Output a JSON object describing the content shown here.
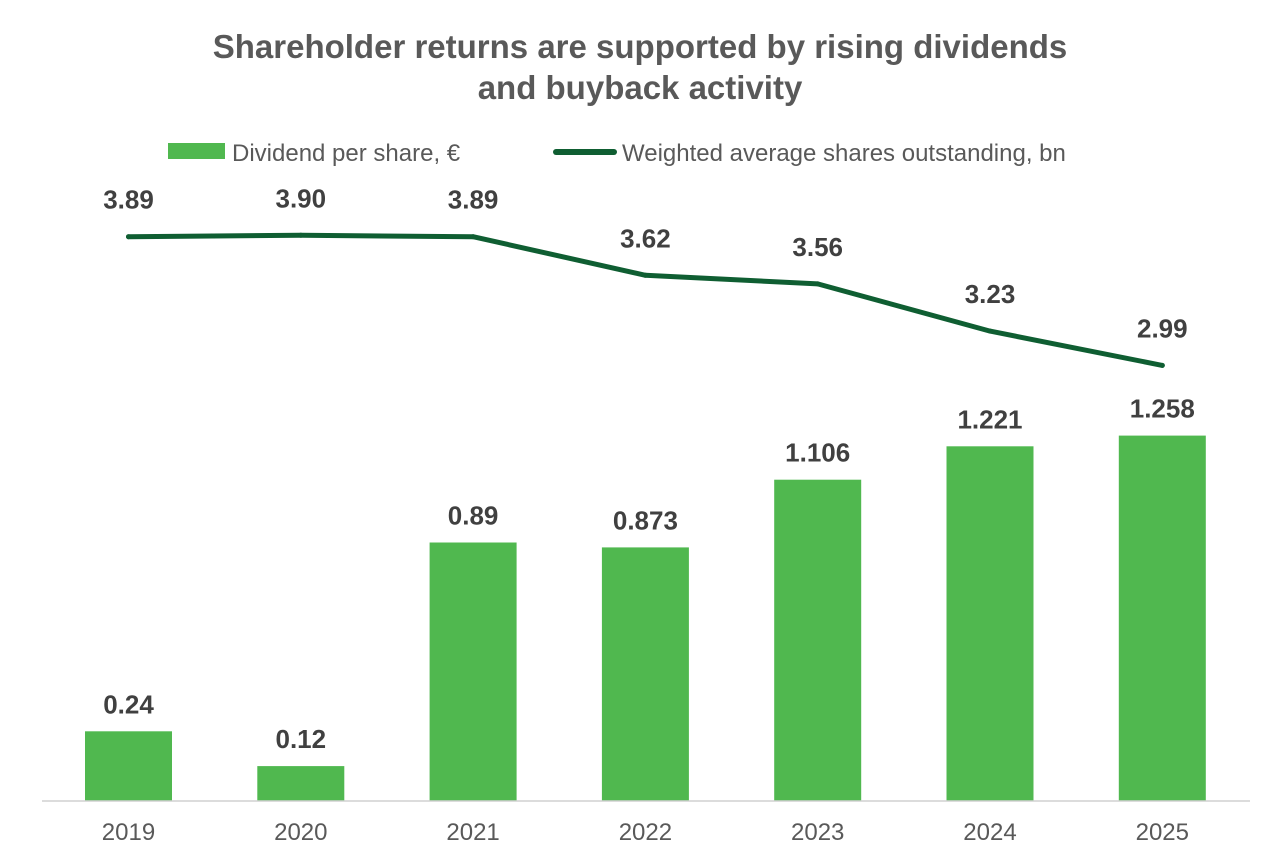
{
  "chart_data": {
    "type": "bar",
    "title_lines": [
      "Shareholder returns are supported by rising dividends",
      "and buyback activity"
    ],
    "categories": [
      "2019",
      "2020",
      "2021",
      "2022",
      "2023",
      "2024",
      "2025"
    ],
    "series": [
      {
        "name": "Dividend per share, €",
        "type": "bar",
        "color": "#50b84f",
        "values": [
          0.24,
          0.12,
          0.89,
          0.873,
          1.106,
          1.221,
          1.258
        ],
        "labels": [
          "0.24",
          "0.12",
          "0.89",
          "0.873",
          "1.106",
          "1.221",
          "1.258"
        ]
      },
      {
        "name": "Weighted average shares outstanding, bn",
        "type": "line",
        "color": "#0f5e32",
        "values": [
          3.89,
          3.9,
          3.89,
          3.62,
          3.56,
          3.23,
          2.99
        ],
        "labels": [
          "3.89",
          "3.90",
          "3.89",
          "3.62",
          "3.56",
          "3.23",
          "2.99"
        ]
      }
    ],
    "legend_position": "top",
    "grid": false,
    "y_axis_visible": false
  }
}
